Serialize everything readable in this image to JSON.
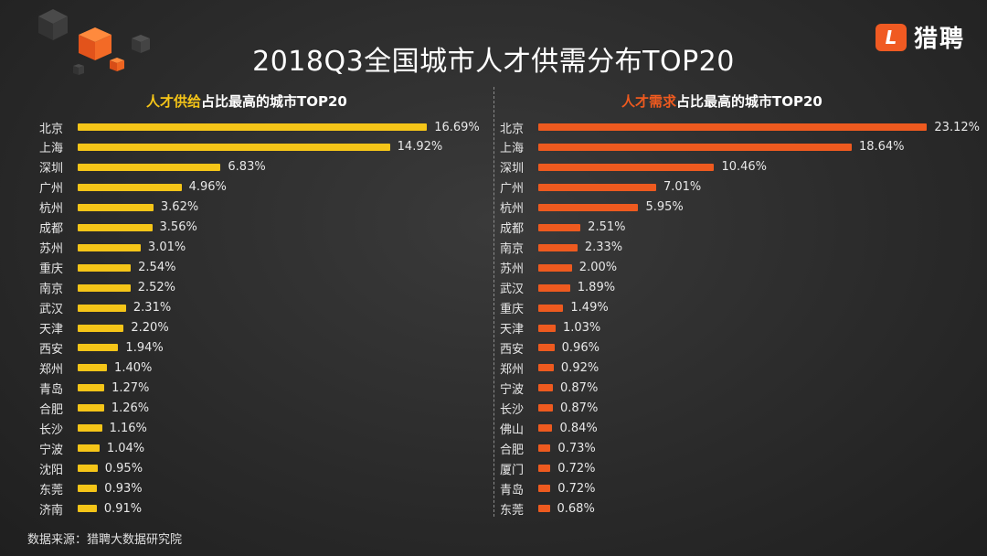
{
  "title": "2018Q3全国城市人才供需分布TOP20",
  "logo": {
    "text": "猎聘",
    "mark": "L"
  },
  "colors": {
    "supply": "#f5c518",
    "demand": "#ee5a1f",
    "brand": "#f05a22"
  },
  "left_header": {
    "highlight": "人才供给",
    "rest": "占比最高的城市TOP20"
  },
  "right_header": {
    "highlight": "人才需求",
    "rest": "占比最高的城市TOP20"
  },
  "source": "数据来源：猎聘大数据研究院",
  "chart_data": [
    {
      "type": "bar",
      "orientation": "horizontal",
      "title": "人才供给占比最高的城市TOP20",
      "unit": "%",
      "categories": [
        "北京",
        "上海",
        "深圳",
        "广州",
        "杭州",
        "成都",
        "苏州",
        "重庆",
        "南京",
        "武汉",
        "天津",
        "西安",
        "郑州",
        "青岛",
        "合肥",
        "长沙",
        "宁波",
        "沈阳",
        "东莞",
        "济南"
      ],
      "values": [
        16.69,
        14.92,
        6.83,
        4.96,
        3.62,
        3.56,
        3.01,
        2.54,
        2.52,
        2.31,
        2.2,
        1.94,
        1.4,
        1.27,
        1.26,
        1.16,
        1.04,
        0.95,
        0.93,
        0.91
      ],
      "labels": [
        "16.69%",
        "14.92%",
        "6.83%",
        "4.96%",
        "3.62%",
        "3.56%",
        "3.01%",
        "2.54%",
        "2.52%",
        "2.31%",
        "2.20%",
        "1.94%",
        "1.40%",
        "1.27%",
        "1.26%",
        "1.16%",
        "1.04%",
        "0.95%",
        "0.93%",
        "0.91%"
      ]
    },
    {
      "type": "bar",
      "orientation": "horizontal",
      "title": "人才需求占比最高的城市TOP20",
      "unit": "%",
      "categories": [
        "北京",
        "上海",
        "深圳",
        "广州",
        "杭州",
        "成都",
        "南京",
        "苏州",
        "武汉",
        "重庆",
        "天津",
        "西安",
        "郑州",
        "宁波",
        "长沙",
        "佛山",
        "合肥",
        "厦门",
        "青岛",
        "东莞"
      ],
      "values": [
        23.12,
        18.64,
        10.46,
        7.01,
        5.95,
        2.51,
        2.33,
        2.0,
        1.89,
        1.49,
        1.03,
        0.96,
        0.92,
        0.87,
        0.87,
        0.84,
        0.73,
        0.72,
        0.72,
        0.68
      ],
      "labels": [
        "23.12%",
        "18.64%",
        "10.46%",
        "7.01%",
        "5.95%",
        "2.51%",
        "2.33%",
        "2.00%",
        "1.89%",
        "1.49%",
        "1.03%",
        "0.96%",
        "0.92%",
        "0.87%",
        "0.87%",
        "0.84%",
        "0.73%",
        "0.72%",
        "0.72%",
        "0.68%"
      ]
    }
  ]
}
